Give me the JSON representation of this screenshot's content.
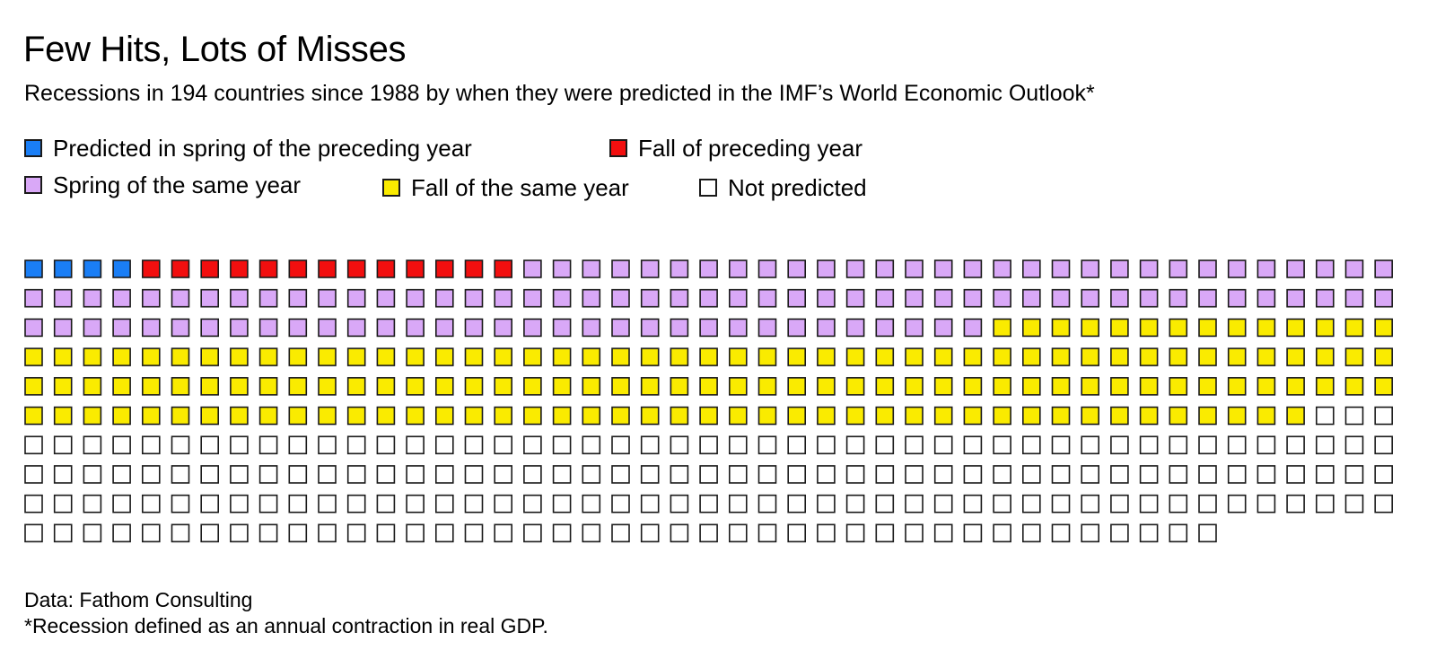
{
  "chart_data": {
    "type": "waffle",
    "title": "Few Hits, Lots of Misses",
    "subtitle": "Recessions in 194 countries since 1988 by when they were predicted in the IMF’s World Economic Outlook*",
    "total": 464,
    "columns": 47,
    "rows": 10,
    "categories": [
      {
        "key": "spring_preceding",
        "label": "Predicted in spring of the preceding year",
        "count": 4,
        "color": "#1a7ef5"
      },
      {
        "key": "fall_preceding",
        "label": "Fall of preceding year",
        "count": 13,
        "color": "#f20f0f"
      },
      {
        "key": "spring_same",
        "label": "Spring of the same year",
        "count": 110,
        "color": "#d9a8f7"
      },
      {
        "key": "fall_same",
        "label": "Fall of the same year",
        "count": 152,
        "color": "#faeb00"
      },
      {
        "key": "not_predicted",
        "label": "Not predicted",
        "count": 185,
        "color": "#ffffff"
      }
    ],
    "legend_position": "top-left",
    "source": "Data: Fathom Consulting",
    "footnote": "*Recession defined as an annual contraction in real GDP."
  }
}
